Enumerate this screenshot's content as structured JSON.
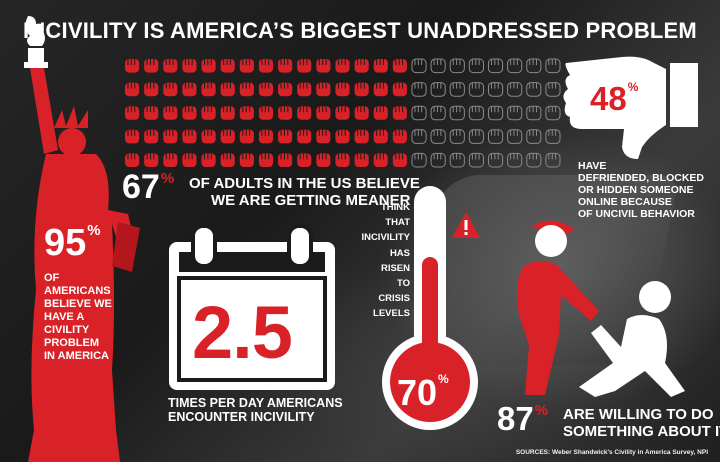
{
  "title": "INCIVILITY IS AMERICA’S BIGGEST UNADDRESSED PROBLEM",
  "colors": {
    "accent": "#d92128",
    "text": "#ffffff",
    "background": "#1b1b1b"
  },
  "icons": [
    "fist-icon",
    "statue-of-liberty-icon",
    "thumbs-down-icon",
    "calendar-icon",
    "thermometer-icon",
    "warning-icon",
    "helping-people-icon"
  ],
  "fist_grid": {
    "rows": 5,
    "columns": 23,
    "share_highlighted": 0.67
  },
  "stats": {
    "adults_meaner": {
      "value": "67",
      "unit": "%",
      "line1": "OF ADULTS IN THE US BELIEVE",
      "line2": "WE ARE GETTING MEANER"
    },
    "blocked": {
      "value": "48",
      "unit": "%",
      "lines": [
        "HAVE",
        "DEFRIENDED, BLOCKED",
        "OR HIDDEN SOMEONE",
        "ONLINE BECAUSE",
        "OF UNCIVIL BEHAVIOR"
      ]
    },
    "civility_problem": {
      "value": "95",
      "unit": "%",
      "lines": [
        "OF",
        "AMERICANS",
        "BELIEVE WE",
        "HAVE A",
        "CIVILITY",
        "PROBLEM",
        "IN AMERICA"
      ]
    },
    "encounters": {
      "value": "2.5",
      "line1": "TIMES PER DAY AMERICANS",
      "line2": "ENCOUNTER INCIVILITY"
    },
    "crisis": {
      "value": "70",
      "unit": "%",
      "lines": [
        "THINK",
        "THAT",
        "INCIVILITY",
        "HAS",
        "RISEN",
        "TO",
        "CRISIS",
        "LEVELS"
      ],
      "level": 0.7
    },
    "willing": {
      "value": "87",
      "unit": "%",
      "line1": "ARE WILLING TO DO",
      "line2": "SOMETHING ABOUT IT"
    }
  },
  "sources": "SOURCES: Weber Shandwick's Civility in America Survey, NPI"
}
